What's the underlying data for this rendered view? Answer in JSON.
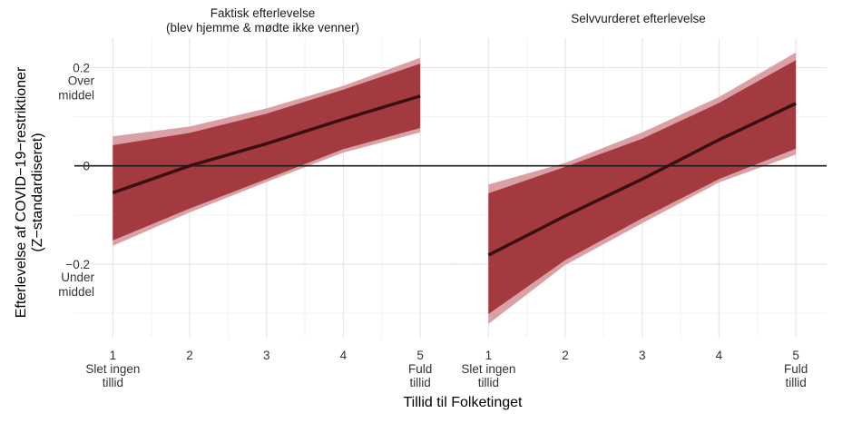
{
  "chart_data": [
    {
      "type": "line",
      "title": "Faktisk efterlevelse\n(blev hjemme & mødte ikke venner)",
      "x": [
        1,
        2,
        3,
        4,
        5
      ],
      "xlim": [
        0.5,
        5.4
      ],
      "ylim": [
        -0.35,
        0.26
      ],
      "series": [
        {
          "estimate": [
            -0.055,
            0.0,
            0.045,
            0.095,
            0.142
          ],
          "ci_inner_lower": [
            -0.152,
            -0.087,
            -0.027,
            0.034,
            0.077
          ],
          "ci_inner_upper": [
            0.042,
            0.067,
            0.106,
            0.155,
            0.208
          ],
          "ci_outer_lower": [
            -0.163,
            -0.095,
            -0.033,
            0.027,
            0.068
          ],
          "ci_outer_upper": [
            0.06,
            0.08,
            0.117,
            0.163,
            0.22
          ]
        }
      ]
    },
    {
      "type": "line",
      "title": "Selvvurderet efterlevelse",
      "x": [
        1,
        2,
        3,
        4,
        5
      ],
      "xlim": [
        0.5,
        5.4
      ],
      "ylim": [
        -0.35,
        0.26
      ],
      "series": [
        {
          "estimate": [
            -0.182,
            -0.102,
            -0.027,
            0.053,
            0.127
          ],
          "ci_inner_lower": [
            -0.302,
            -0.192,
            -0.107,
            -0.027,
            0.035
          ],
          "ci_inner_upper": [
            -0.056,
            -0.002,
            0.055,
            0.128,
            0.215
          ],
          "ci_outer_lower": [
            -0.322,
            -0.202,
            -0.117,
            -0.034,
            0.023
          ],
          "ci_outer_upper": [
            -0.038,
            0.006,
            0.068,
            0.14,
            0.231
          ]
        }
      ]
    }
  ],
  "axis": {
    "xlabel": "Tillid til Folketinget",
    "ylabel_line1": "Efterlevelse af COVID−19−restriktioner",
    "ylabel_line2": "(Z−standardiseret)",
    "y_ticks": [
      {
        "value": 0.2,
        "label": "0.2"
      },
      {
        "value": 0,
        "label": "0"
      },
      {
        "value": -0.2,
        "label": "−0.2"
      }
    ],
    "y_sub_labels": [
      {
        "value": 0.165,
        "lines": [
          "Over",
          "middel"
        ]
      },
      {
        "value": -0.235,
        "lines": [
          "Under",
          "middel"
        ]
      }
    ],
    "x_ticks": [
      {
        "value": 1,
        "lines": [
          "1",
          "Slet ingen",
          "tillid"
        ]
      },
      {
        "value": 2,
        "lines": [
          "2"
        ]
      },
      {
        "value": 3,
        "lines": [
          "3"
        ]
      },
      {
        "value": 4,
        "lines": [
          "4"
        ]
      },
      {
        "value": 5,
        "lines": [
          "5",
          "Fuld",
          "tillid"
        ]
      }
    ]
  },
  "colors": {
    "ci_outer": "#d9a1a6",
    "ci_inner": "#a33a40",
    "estimate_line": "#3a0f10",
    "zero_line": "#1a1a1a",
    "grid_major": "#e6e6e6",
    "grid_minor": "#f2f2f2",
    "text": "#333333",
    "title_text": "#1a1a1a"
  }
}
